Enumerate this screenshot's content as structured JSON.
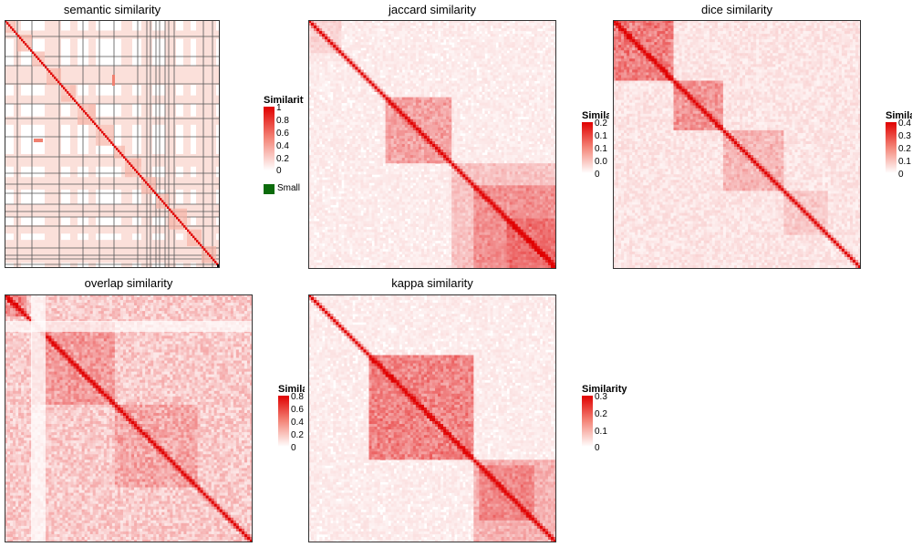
{
  "chart_data": [
    {
      "type": "heatmap",
      "title": "semantic similarity",
      "legend": {
        "title": "Similarity",
        "ticks": [
          "1",
          "0.8",
          "0.6",
          "0.4",
          "0.2",
          "0"
        ],
        "extra_label": "Small"
      },
      "value_range": [
        0,
        1
      ],
      "colors": {
        "high": "#e00000",
        "low": "#ffffff",
        "extra": "#0b6b0b"
      }
    },
    {
      "type": "heatmap",
      "title": "jaccard similarity",
      "legend": {
        "title": "Similarity",
        "ticks": [
          "0.2",
          "0.1",
          "0.1",
          "0.0",
          "0"
        ]
      },
      "value_range": [
        0,
        0.2
      ],
      "colors": {
        "high": "#e00000",
        "low": "#ffffff"
      }
    },
    {
      "type": "heatmap",
      "title": "dice similarity",
      "legend": {
        "title": "Simila",
        "ticks": [
          "0.4",
          "0.3",
          "0.2",
          "0.1",
          "0"
        ]
      },
      "value_range": [
        0,
        0.4
      ],
      "colors": {
        "high": "#e00000",
        "low": "#ffffff"
      }
    },
    {
      "type": "heatmap",
      "title": "overlap similarity",
      "legend": {
        "title": "Simila",
        "ticks": [
          "0.8",
          "0.6",
          "0.4",
          "0.2",
          "0"
        ]
      },
      "value_range": [
        0,
        0.8
      ],
      "colors": {
        "high": "#e00000",
        "low": "#ffffff"
      }
    },
    {
      "type": "heatmap",
      "title": "kappa similarity",
      "legend": {
        "title": "Similarity",
        "ticks": [
          "0.3",
          "0.2",
          "0.1",
          "0"
        ]
      },
      "value_range": [
        0,
        0.3
      ],
      "colors": {
        "high": "#e00000",
        "low": "#ffffff"
      }
    }
  ]
}
